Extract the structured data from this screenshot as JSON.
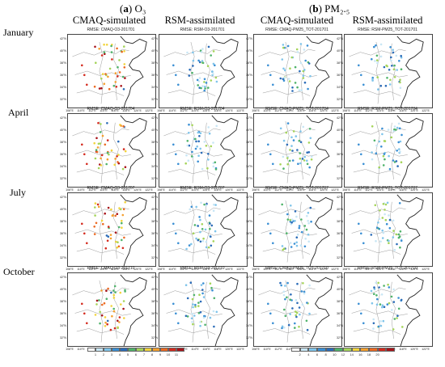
{
  "headers": {
    "left": {
      "letter": "a",
      "label": "O₃"
    },
    "right": {
      "letter": "b",
      "label": "PM₂.₅"
    }
  },
  "columns": [
    "CMAQ-simulated",
    "RSM-assimilated",
    "CMAQ-simulated",
    "RSM-assimilated"
  ],
  "rows": [
    "January",
    "April",
    "July",
    "October"
  ],
  "map_titles": [
    [
      "RMSE: CMAQ-O3-201701",
      "RMSE: RSM-O3-201701",
      "RMSE: CMAQ-PM25_TOT-201701",
      "RMSE: RSM-PM25_TOT-201701"
    ],
    [
      "RMSE: CMAQ-O3-201704",
      "RMSE: RSM-O3-201704",
      "RMSE: CMAQ-PM25_TOT-201704",
      "RMSE: RSM-PM25_TOT-201704"
    ],
    [
      "RMSE: CMAQ-O3-201707",
      "RMSE: RSM-O3-201707",
      "RMSE: CMAQ-PM25_TOT-201707",
      "RMSE: RSM-PM25_TOT-201707"
    ],
    [
      "RMSE: CMAQ-O3-201710",
      "RMSE: RSM-O3-201710",
      "RMSE: CMAQ-PM25_TOT-201710",
      "RMSE: RSM-PM25_TOT-201710"
    ]
  ],
  "lat_ticks": [
    "42°N",
    "40°N",
    "38°N",
    "36°N",
    "34°N",
    "32°N"
  ],
  "lon_ticks": [
    "108°E",
    "110°E",
    "112°E",
    "114°E",
    "116°E",
    "118°E",
    "120°E",
    "122°E"
  ],
  "colorbar_left": {
    "colors": [
      "#ffffff",
      "#c8e6f5",
      "#7fc4ea",
      "#3a8fd4",
      "#2b6cb8",
      "#4fb36a",
      "#a5d45a",
      "#f2d43c",
      "#f5a02e",
      "#ec6a22",
      "#d42a1e",
      "#a8141a"
    ],
    "labels": [
      "1",
      "2",
      "3",
      "4",
      "5",
      "6",
      "7",
      "8",
      "9",
      "10",
      "11"
    ]
  },
  "colorbar_right": {
    "colors": [
      "#ffffff",
      "#c8e6f5",
      "#7fc4ea",
      "#3a8fd4",
      "#2b6cb8",
      "#4fb36a",
      "#a5d45a",
      "#f2d43c",
      "#f5a02e",
      "#ec6a22",
      "#d42a1e",
      "#a8141a"
    ],
    "labels": [
      "2",
      "4",
      "6",
      "8",
      "10",
      "12",
      "14",
      "16",
      "18",
      "20"
    ]
  }
}
